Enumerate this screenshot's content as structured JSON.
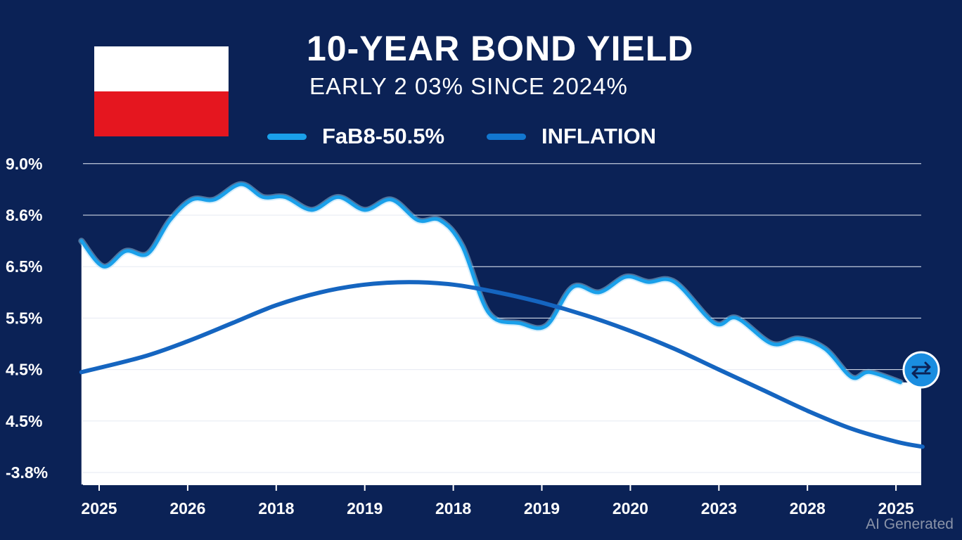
{
  "header": {
    "title": "10-YEAR BOND YIELD",
    "subtitle": "EARLY 2 03% SINCE 2024%"
  },
  "legend": [
    {
      "label": "FaB8-50.5%",
      "color": "#1aa0ea"
    },
    {
      "label": "INFLATION",
      "color": "#1277d0"
    }
  ],
  "colors": {
    "background": "#0b2256",
    "plot_fill": "#ffffff",
    "bond_line": "#1aa0ea",
    "inflation_line": "#1565c0",
    "end_marker": "#1a8de0"
  },
  "end_marker_icon": "swap-arrows-icon",
  "watermark": "AI Generated",
  "chart_data": {
    "type": "line",
    "title": "10-YEAR BOND YIELD",
    "subtitle": "EARLY 2 03% SINCE 2024%",
    "y_tick_labels": [
      "9.0%",
      "8.6%",
      "6.5%",
      "5.5%",
      "4.5%",
      "4.5%",
      "-3.8%"
    ],
    "x_tick_labels": [
      "2025",
      "2026",
      "2018",
      "2019",
      "2018",
      "2019",
      "2020",
      "2023",
      "2028",
      "2025"
    ],
    "x_range": [
      -0.2,
      9.3
    ],
    "y_range": [
      0,
      6.2
    ],
    "y_axis_note": "values in tick-index units (0 = -3.8%, 6 = 9.0%); tick labels are non-uniform as printed",
    "series": [
      {
        "name": "FaB8-50.5%",
        "color": "#1aa0ea",
        "points": [
          [
            -0.2,
            4.5
          ],
          [
            0.05,
            4.0
          ],
          [
            0.3,
            4.3
          ],
          [
            0.55,
            4.25
          ],
          [
            0.8,
            4.9
          ],
          [
            1.05,
            5.3
          ],
          [
            1.3,
            5.3
          ],
          [
            1.6,
            5.6
          ],
          [
            1.85,
            5.35
          ],
          [
            2.1,
            5.35
          ],
          [
            2.4,
            5.1
          ],
          [
            2.7,
            5.35
          ],
          [
            3.0,
            5.1
          ],
          [
            3.3,
            5.3
          ],
          [
            3.6,
            4.9
          ],
          [
            3.85,
            4.9
          ],
          [
            4.1,
            4.4
          ],
          [
            4.4,
            3.1
          ],
          [
            4.75,
            2.9
          ],
          [
            5.05,
            2.85
          ],
          [
            5.35,
            3.6
          ],
          [
            5.65,
            3.5
          ],
          [
            5.95,
            3.8
          ],
          [
            6.2,
            3.7
          ],
          [
            6.5,
            3.7
          ],
          [
            6.95,
            2.9
          ],
          [
            7.2,
            3.0
          ],
          [
            7.6,
            2.5
          ],
          [
            7.9,
            2.6
          ],
          [
            8.2,
            2.4
          ],
          [
            8.5,
            1.85
          ],
          [
            8.7,
            1.95
          ],
          [
            9.05,
            1.75
          ]
        ]
      },
      {
        "name": "INFLATION",
        "color": "#1565c0",
        "points": [
          [
            -0.2,
            1.95
          ],
          [
            0.5,
            2.25
          ],
          [
            1.0,
            2.55
          ],
          [
            1.5,
            2.9
          ],
          [
            2.0,
            3.25
          ],
          [
            2.5,
            3.5
          ],
          [
            3.0,
            3.65
          ],
          [
            3.5,
            3.7
          ],
          [
            4.0,
            3.65
          ],
          [
            4.5,
            3.5
          ],
          [
            5.0,
            3.3
          ],
          [
            5.5,
            3.05
          ],
          [
            6.0,
            2.75
          ],
          [
            6.5,
            2.4
          ],
          [
            7.0,
            2.0
          ],
          [
            7.5,
            1.6
          ],
          [
            8.0,
            1.2
          ],
          [
            8.5,
            0.85
          ],
          [
            9.0,
            0.6
          ],
          [
            9.3,
            0.5
          ]
        ]
      }
    ]
  }
}
